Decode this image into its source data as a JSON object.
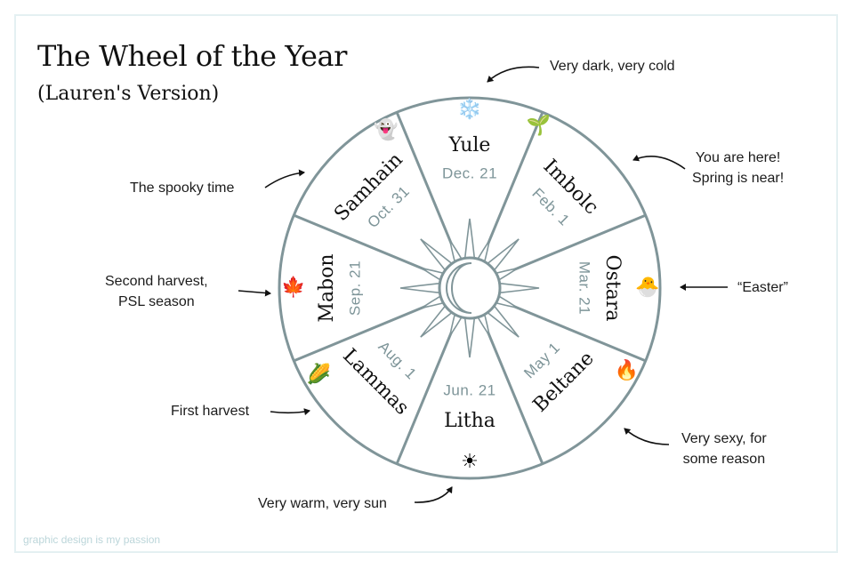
{
  "title": "The Wheel of the Year",
  "subtitle": "(Lauren's Version)",
  "footer": "graphic design is my passion",
  "colors": {
    "wheel_stroke": "#809599",
    "date_text": "#7e9599",
    "frame": "#e4f0f2",
    "footer": "#bcd6da"
  },
  "festivals": [
    {
      "name": "Yule",
      "date": "Dec. 21",
      "icon": "snowflake-icon",
      "glyph": "❄️"
    },
    {
      "name": "Imbolc",
      "date": "Feb. 1",
      "icon": "sprout-icon",
      "glyph": "🌱"
    },
    {
      "name": "Ostara",
      "date": "Mar. 21",
      "icon": "hatching-chick-icon",
      "glyph": "🐣"
    },
    {
      "name": "Beltane",
      "date": "May 1",
      "icon": "fire-icon",
      "glyph": "🔥"
    },
    {
      "name": "Litha",
      "date": "Jun. 21",
      "icon": "sun-icon",
      "glyph": "☀"
    },
    {
      "name": "Lammas",
      "date": "Aug. 1",
      "icon": "corn-icon",
      "glyph": "🌽"
    },
    {
      "name": "Mabon",
      "date": "Sep. 21",
      "icon": "maple-leaf-icon",
      "glyph": "🍁"
    },
    {
      "name": "Samhain",
      "date": "Oct. 31",
      "icon": "ghost-icon",
      "glyph": "👻"
    }
  ],
  "notes": {
    "yule": [
      "Very dark, very cold"
    ],
    "imbolc": [
      "You are here!",
      "Spring is near!"
    ],
    "ostara": [
      "“Easter”"
    ],
    "beltane": [
      "Very sexy, for",
      "some reason"
    ],
    "litha": [
      "Very warm, very sun"
    ],
    "lammas": [
      "First harvest"
    ],
    "mabon": [
      "Second harvest,",
      "PSL season"
    ],
    "samhain": [
      "The spooky time"
    ]
  }
}
